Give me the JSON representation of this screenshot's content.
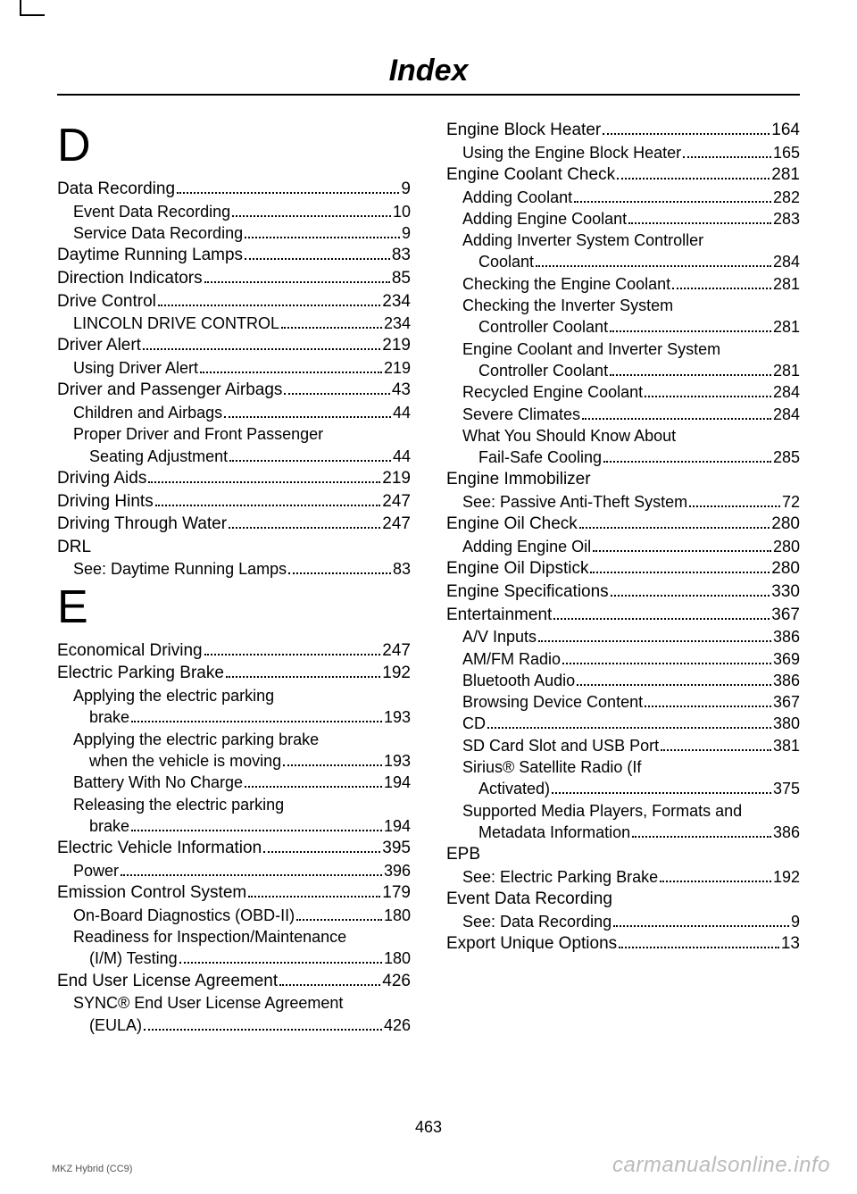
{
  "header": "Index",
  "page_number": "463",
  "footer_left": "MKZ Hybrid (CC9)",
  "watermark": "carmanualsonline.info",
  "left_col": {
    "sections": [
      {
        "letter": "D",
        "entries": [
          {
            "label": "Data Recording",
            "page": "9",
            "level": 0
          },
          {
            "label": "Event Data Recording",
            "page": "10",
            "level": 1
          },
          {
            "label": "Service Data Recording",
            "page": "9",
            "level": 1
          },
          {
            "label": "Daytime Running Lamps",
            "page": "83",
            "level": 0
          },
          {
            "label": "Direction Indicators",
            "page": "85",
            "level": 0
          },
          {
            "label": "Drive Control",
            "page": "234",
            "level": 0
          },
          {
            "label": "LINCOLN DRIVE CONTROL",
            "page": "234",
            "level": 1
          },
          {
            "label": "Driver Alert",
            "page": "219",
            "level": 0
          },
          {
            "label": "Using Driver Alert",
            "page": "219",
            "level": 1
          },
          {
            "label": "Driver and Passenger Airbags",
            "page": "43",
            "level": 0
          },
          {
            "label": "Children and Airbags",
            "page": "44",
            "level": 1
          },
          {
            "label": "Proper Driver and Front Passenger",
            "level": 1,
            "plain": true
          },
          {
            "label": "Seating Adjustment",
            "page": "44",
            "level": 2
          },
          {
            "label": "Driving Aids",
            "page": "219",
            "level": 0
          },
          {
            "label": "Driving Hints",
            "page": "247",
            "level": 0
          },
          {
            "label": "Driving Through Water",
            "page": "247",
            "level": 0
          },
          {
            "label": "DRL",
            "level": 0,
            "plain": true
          },
          {
            "label": "See: Daytime Running Lamps",
            "page": "83",
            "level": 1
          }
        ]
      },
      {
        "letter": "E",
        "entries": [
          {
            "label": "Economical Driving",
            "page": "247",
            "level": 0
          },
          {
            "label": "Electric Parking Brake",
            "page": "192",
            "level": 0
          },
          {
            "label": "Applying the electric parking",
            "level": 1,
            "plain": true
          },
          {
            "label": "brake",
            "page": "193",
            "level": 2
          },
          {
            "label": "Applying the electric parking brake",
            "level": 1,
            "plain": true
          },
          {
            "label": "when the vehicle is moving",
            "page": "193",
            "level": 2
          },
          {
            "label": "Battery With No Charge",
            "page": "194",
            "level": 1
          },
          {
            "label": "Releasing the electric parking",
            "level": 1,
            "plain": true
          },
          {
            "label": "brake",
            "page": "194",
            "level": 2
          },
          {
            "label": "Electric Vehicle Information",
            "page": "395",
            "level": 0
          },
          {
            "label": "Power",
            "page": "396",
            "level": 1
          },
          {
            "label": "Emission Control System",
            "page": "179",
            "level": 0
          },
          {
            "label": "On-Board Diagnostics (OBD-II)",
            "page": "180",
            "level": 1
          },
          {
            "label": "Readiness for Inspection/Maintenance",
            "level": 1,
            "plain": true
          },
          {
            "label": "(I/M) Testing",
            "page": "180",
            "level": 2
          },
          {
            "label": "End User License Agreement",
            "page": "426",
            "level": 0
          },
          {
            "label": "SYNC® End User License Agreement",
            "level": 1,
            "plain": true
          },
          {
            "label": "(EULA)",
            "page": "426",
            "level": 2
          }
        ]
      }
    ]
  },
  "right_col": {
    "entries": [
      {
        "label": "Engine Block Heater",
        "page": "164",
        "level": 0
      },
      {
        "label": "Using the Engine Block Heater",
        "page": "165",
        "level": 1
      },
      {
        "label": "Engine Coolant Check",
        "page": "281",
        "level": 0
      },
      {
        "label": "Adding Coolant",
        "page": "282",
        "level": 1
      },
      {
        "label": "Adding Engine Coolant",
        "page": "283",
        "level": 1
      },
      {
        "label": "Adding Inverter System Controller",
        "level": 1,
        "plain": true
      },
      {
        "label": "Coolant",
        "page": "284",
        "level": 2
      },
      {
        "label": "Checking the Engine Coolant",
        "page": "281",
        "level": 1
      },
      {
        "label": "Checking the Inverter System",
        "level": 1,
        "plain": true
      },
      {
        "label": "Controller Coolant",
        "page": "281",
        "level": 2
      },
      {
        "label": "Engine Coolant and Inverter System",
        "level": 1,
        "plain": true
      },
      {
        "label": "Controller Coolant",
        "page": "281",
        "level": 2
      },
      {
        "label": "Recycled Engine Coolant",
        "page": "284",
        "level": 1
      },
      {
        "label": "Severe Climates",
        "page": "284",
        "level": 1
      },
      {
        "label": "What You Should Know About",
        "level": 1,
        "plain": true
      },
      {
        "label": "Fail-Safe Cooling",
        "page": "285",
        "level": 2
      },
      {
        "label": "Engine Immobilizer",
        "level": 0,
        "plain": true
      },
      {
        "label": "See: Passive Anti-Theft System",
        "page": "72",
        "level": 1
      },
      {
        "label": "Engine Oil Check",
        "page": "280",
        "level": 0
      },
      {
        "label": "Adding Engine Oil",
        "page": "280",
        "level": 1
      },
      {
        "label": "Engine Oil Dipstick",
        "page": "280",
        "level": 0
      },
      {
        "label": "Engine Specifications",
        "page": "330",
        "level": 0
      },
      {
        "label": "Entertainment",
        "page": "367",
        "level": 0
      },
      {
        "label": "A/V Inputs",
        "page": "386",
        "level": 1
      },
      {
        "label": "AM/FM Radio",
        "page": "369",
        "level": 1
      },
      {
        "label": "Bluetooth Audio",
        "page": "386",
        "level": 1
      },
      {
        "label": "Browsing Device Content",
        "page": "367",
        "level": 1
      },
      {
        "label": "CD",
        "page": "380",
        "level": 1
      },
      {
        "label": "SD Card Slot and USB Port",
        "page": "381",
        "level": 1
      },
      {
        "label": "Sirius® Satellite Radio (If",
        "level": 1,
        "plain": true
      },
      {
        "label": "Activated)",
        "page": "375",
        "level": 2
      },
      {
        "label": "Supported Media Players, Formats and",
        "level": 1,
        "plain": true
      },
      {
        "label": "Metadata Information",
        "page": "386",
        "level": 2
      },
      {
        "label": "EPB",
        "level": 0,
        "plain": true
      },
      {
        "label": "See: Electric Parking Brake",
        "page": "192",
        "level": 1
      },
      {
        "label": "Event Data Recording",
        "level": 0,
        "plain": true
      },
      {
        "label": "See: Data Recording",
        "page": "9",
        "level": 1
      },
      {
        "label": "Export Unique Options",
        "page": "13",
        "level": 0
      }
    ]
  }
}
